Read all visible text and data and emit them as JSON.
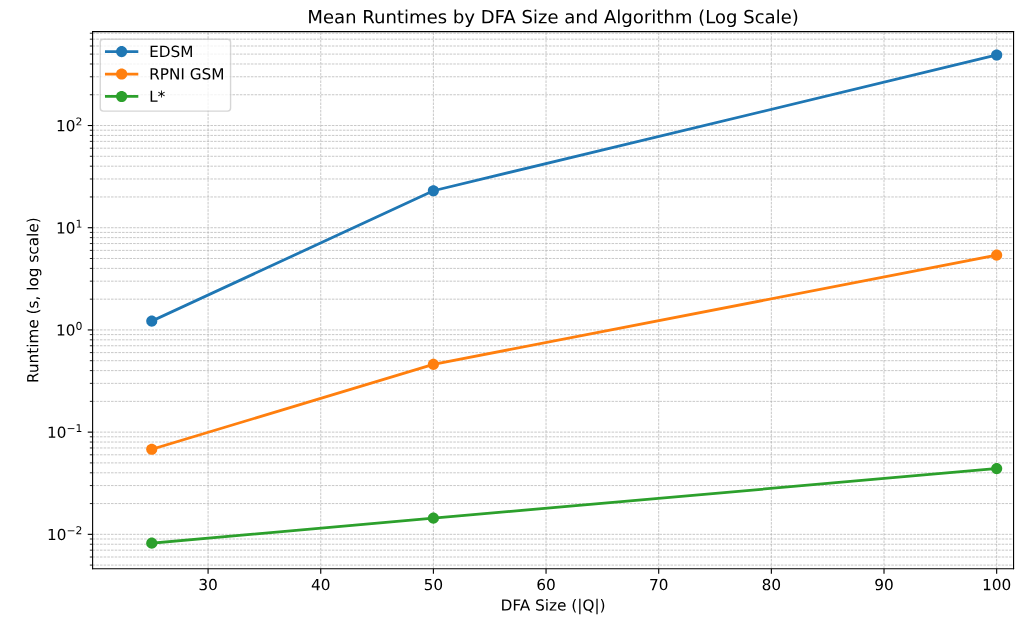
{
  "chart_data": {
    "type": "line",
    "title": "Mean Runtimes by DFA Size and Algorithm (Log Scale)",
    "xlabel": "DFA Size (|Q|)",
    "ylabel": "Runtime (s, log scale)",
    "x": [
      25,
      50,
      100
    ],
    "series": [
      {
        "name": "EDSM",
        "color": "#1f77b4",
        "values": [
          1.22,
          23,
          490
        ]
      },
      {
        "name": "RPNI GSM",
        "color": "#ff7f0e",
        "values": [
          0.068,
          0.46,
          5.4
        ]
      },
      {
        "name": "L*",
        "color": "#2ca02c",
        "values": [
          0.0082,
          0.0144,
          0.044
        ]
      }
    ],
    "log": "y",
    "xlim": [
      19.75,
      101.5
    ],
    "ylim": [
      0.0046,
      830
    ],
    "xticks": [
      30,
      40,
      50,
      60,
      70,
      80,
      90,
      100
    ],
    "yticks": [
      {
        "value": 0.01,
        "label": "10$^{−2}$"
      },
      {
        "value": 0.1,
        "label": "10$^{−1}$"
      },
      {
        "value": 1,
        "label": "10$^{0}$"
      },
      {
        "value": 10,
        "label": "10$^{1}$"
      },
      {
        "value": 100,
        "label": "10$^{2}$"
      }
    ],
    "grid": true,
    "legend": "top left",
    "marker": "circle",
    "line_style": "solid"
  }
}
